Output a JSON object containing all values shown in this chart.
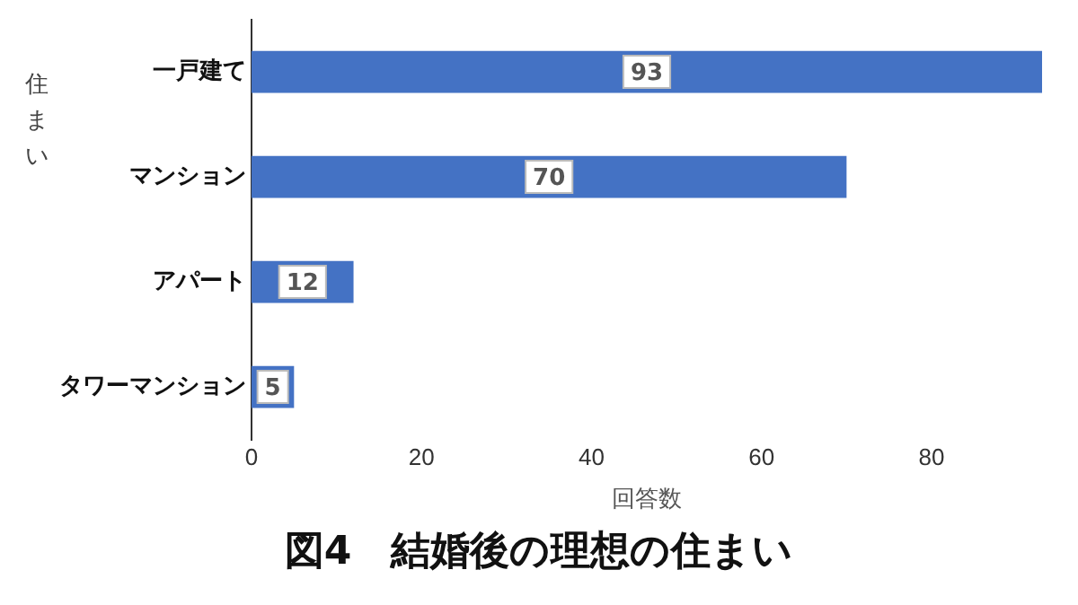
{
  "chart_data": {
    "type": "bar",
    "orientation": "horizontal",
    "title": "図4　結婚後の理想の住まい",
    "xlabel": "回答数",
    "ylabel": "住まい",
    "categories": [
      "一戸建て",
      "マンション",
      "アパート",
      "タワーマンション"
    ],
    "values": [
      93,
      70,
      12,
      5
    ],
    "color": "#4472c4",
    "xlim": [
      0,
      93
    ],
    "xticks": [
      0,
      20,
      40,
      60,
      80
    ],
    "data_labels": true
  }
}
